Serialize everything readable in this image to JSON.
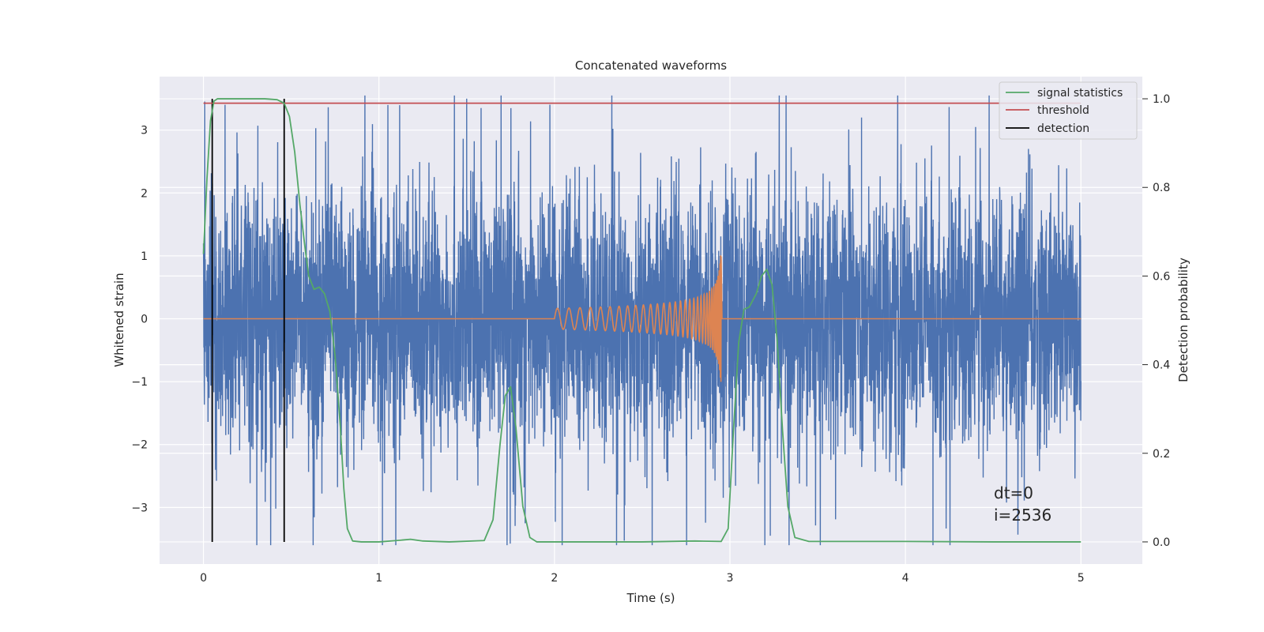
{
  "chart_data": {
    "type": "line",
    "title": "Concatenated waveforms",
    "xlabel": "Time (s)",
    "ylabel_left": "Whitened strain",
    "ylabel_right": "Detection probability",
    "xlim": [
      -0.25,
      5.35
    ],
    "ylim_left": [
      -3.9,
      3.85
    ],
    "ylim_right": [
      -0.05,
      1.05
    ],
    "x_ticks": [
      "0",
      "1",
      "2",
      "3",
      "4",
      "5"
    ],
    "y_left_ticks": [
      "−3",
      "−2",
      "−1",
      "0",
      "1",
      "2",
      "3"
    ],
    "y_right_ticks": [
      "0.0",
      "0.2",
      "0.4",
      "0.6",
      "0.8",
      "1.0"
    ],
    "grid": true,
    "legend_position": "top-right",
    "colors": {
      "background": "#eaeaf2",
      "strain": "#4c72b0",
      "template": "#dd8452",
      "signal_statistics": "#55a868",
      "threshold": "#c44e52",
      "detection": "#000000"
    },
    "series": [
      {
        "name": "signal statistics",
        "axis": "right",
        "x": [
          0.0,
          0.02,
          0.04,
          0.06,
          0.08,
          0.15,
          0.25,
          0.35,
          0.42,
          0.46,
          0.49,
          0.52,
          0.55,
          0.58,
          0.6,
          0.63,
          0.66,
          0.69,
          0.72,
          0.75,
          0.78,
          0.8,
          0.82,
          0.85,
          0.9,
          1.0,
          1.1,
          1.18,
          1.25,
          1.4,
          1.6,
          1.65,
          1.69,
          1.72,
          1.75,
          1.78,
          1.82,
          1.86,
          1.9,
          2.0,
          2.5,
          2.8,
          2.95,
          2.99,
          3.02,
          3.05,
          3.08,
          3.11,
          3.15,
          3.18,
          3.21,
          3.24,
          3.27,
          3.3,
          3.33,
          3.37,
          3.45,
          4.0,
          4.5,
          5.0
        ],
        "values": [
          0.65,
          0.82,
          0.95,
          0.995,
          1.0,
          1.0,
          1.0,
          1.0,
          0.998,
          0.99,
          0.96,
          0.88,
          0.76,
          0.66,
          0.6,
          0.57,
          0.575,
          0.56,
          0.52,
          0.42,
          0.26,
          0.12,
          0.03,
          0.002,
          0.0,
          0.0,
          0.003,
          0.006,
          0.002,
          0.0,
          0.003,
          0.05,
          0.22,
          0.33,
          0.35,
          0.26,
          0.08,
          0.01,
          0.0,
          0.0,
          0.0,
          0.002,
          0.001,
          0.03,
          0.25,
          0.45,
          0.525,
          0.53,
          0.56,
          0.6,
          0.615,
          0.58,
          0.45,
          0.25,
          0.08,
          0.01,
          0.001,
          0.001,
          0.0,
          0.0
        ]
      },
      {
        "name": "threshold",
        "axis": "right",
        "x": [
          0.0,
          5.0
        ],
        "values": [
          0.99,
          0.99
        ]
      },
      {
        "name": "detection",
        "axis": "right",
        "x": [
          0.05,
          0.46
        ],
        "ymin": 0.0,
        "ymax": 1.0
      },
      {
        "axis": "left",
        "description_of_shape": "noise",
        "x_range": [
          0.0,
          5.0
        ],
        "amplitude_envelope": [
          -3.6,
          3.55
        ],
        "spikes": [
          {
            "x": 0.31,
            "y": 3.07
          },
          {
            "x": 0.64,
            "y": 3.03
          },
          {
            "x": 1.5,
            "y": 3.5
          },
          {
            "x": 3.75,
            "y": 3.2
          },
          {
            "x": 4.4,
            "y": 3.05
          },
          {
            "x": 1.02,
            "y": -3.6
          },
          {
            "x": 3.23,
            "y": -3.45
          }
        ]
      },
      {
        "axis": "left",
        "x_chirp_start": 2.0,
        "x_chirp_end": 2.95,
        "peak_amplitude": 1.02
      }
    ],
    "annotations": [
      "dt=0",
      "i=2536"
    ]
  }
}
